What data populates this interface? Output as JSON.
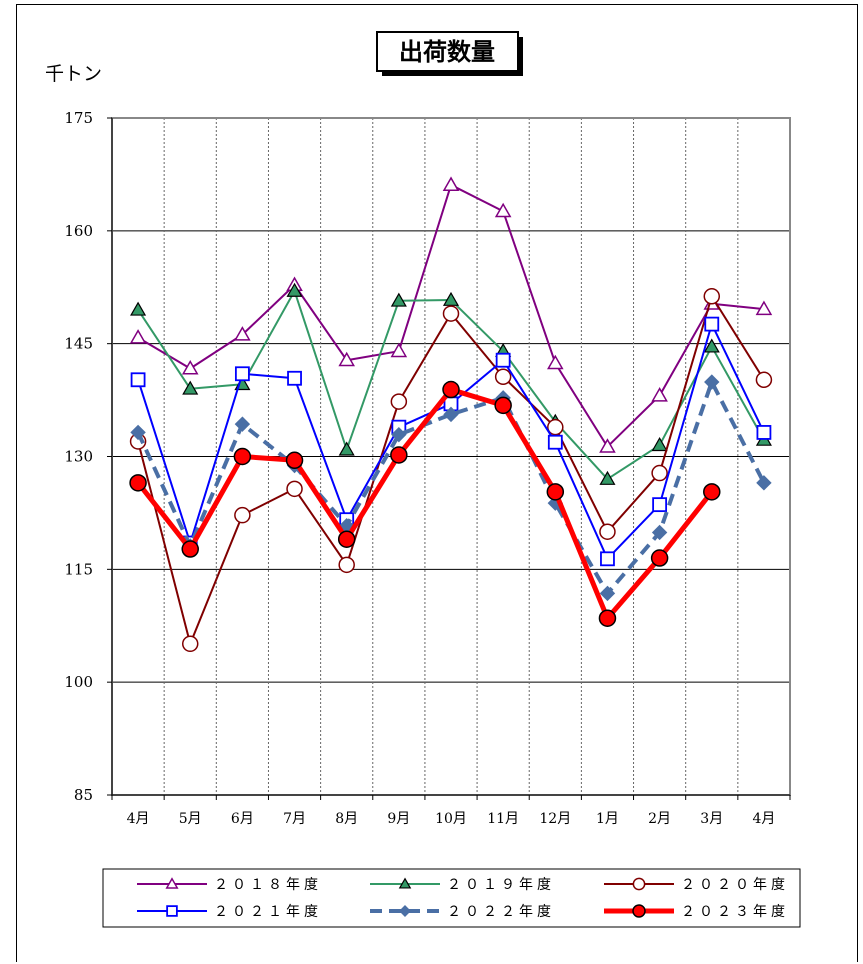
{
  "chart_data": {
    "type": "line",
    "title": "出荷数量",
    "unit_label": "千トン",
    "ylim": [
      85,
      175
    ],
    "yticks": [
      85,
      100,
      115,
      130,
      145,
      160,
      175
    ],
    "grid": true,
    "categories": [
      "4月",
      "5月",
      "6月",
      "7月",
      "8月",
      "9月",
      "10月",
      "11月",
      "12月",
      "1月",
      "2月",
      "3月",
      "4月"
    ],
    "legend_position": "bottom",
    "series": [
      {
        "name": "２０１８年度",
        "color": "#800080",
        "marker": "open-triangle",
        "dashed": false,
        "width": 2,
        "values": [
          145.8,
          141.7,
          146.2,
          152.8,
          142.8,
          144.0,
          166.1,
          162.6,
          142.4,
          131.3,
          138.1,
          150.3,
          149.6
        ]
      },
      {
        "name": "２０１９年度",
        "color": "#339966",
        "marker": "filled-triangle",
        "dashed": false,
        "width": 2,
        "values": [
          149.5,
          139.0,
          139.6,
          152.0,
          130.9,
          150.7,
          150.8,
          144.0,
          134.6,
          127.0,
          131.5,
          144.6,
          132.2
        ]
      },
      {
        "name": "２０２０年度",
        "color": "#800000",
        "marker": "open-circle",
        "dashed": false,
        "width": 2,
        "values": [
          132.0,
          105.1,
          122.2,
          125.7,
          115.6,
          137.3,
          149.0,
          140.6,
          133.9,
          120.0,
          127.8,
          151.3,
          140.2
        ]
      },
      {
        "name": "２０２１年度",
        "color": "#0000ff",
        "marker": "open-square",
        "dashed": false,
        "width": 2,
        "values": [
          140.2,
          118.5,
          141.0,
          140.4,
          121.6,
          133.9,
          137.0,
          142.8,
          131.9,
          116.4,
          123.6,
          147.6,
          133.2
        ]
      },
      {
        "name": "２０２２年度",
        "color": "#4a6fa5",
        "marker": "filled-diamond",
        "dashed": true,
        "width": 4,
        "values": [
          133.2,
          118.1,
          134.3,
          128.8,
          120.8,
          132.9,
          135.6,
          137.8,
          123.8,
          111.8,
          119.9,
          139.9,
          126.5
        ]
      },
      {
        "name": "２０２３年度",
        "color": "#ff0000",
        "marker": "filled-circle",
        "dashed": false,
        "width": 5,
        "values": [
          126.5,
          117.7,
          130.0,
          129.5,
          119.0,
          130.2,
          138.9,
          136.8,
          125.3,
          108.5,
          116.5,
          125.3,
          null
        ]
      }
    ]
  }
}
